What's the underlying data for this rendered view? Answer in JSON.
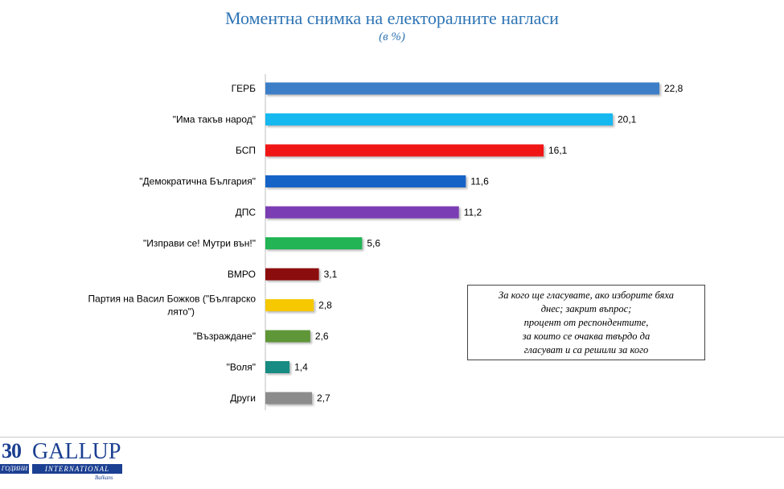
{
  "chart_data": {
    "type": "bar",
    "orientation": "horizontal",
    "title": "Моментна снимка на електоралните нагласи",
    "subtitle": "(в %)",
    "categories": [
      "ГЕРБ",
      "\"Има такъв народ\"",
      "БСП",
      "\"Демократична България\"",
      "ДПС",
      "\"Изправи се! Мутри вън!\"",
      "ВМРО",
      "Партия на Васил Божков (\"Българско лято\")",
      "\"Възраждане\"",
      "\"Воля\"",
      "Други"
    ],
    "values": [
      22.8,
      20.1,
      16.1,
      11.6,
      11.2,
      5.6,
      3.1,
      2.8,
      2.6,
      1.4,
      2.7
    ],
    "value_labels": [
      "22,8",
      "20,1",
      "16,1",
      "11,6",
      "11,2",
      "5,6",
      "3,1",
      "2,8",
      "2,6",
      "1,4",
      "2,7"
    ],
    "colors": [
      "#3d7ec8",
      "#19b8f0",
      "#f01414",
      "#1464c8",
      "#7a3cb4",
      "#22b455",
      "#8c1010",
      "#f5c800",
      "#5f9637",
      "#148c82",
      "#8c8c8c"
    ],
    "xlim": [
      0,
      23
    ],
    "grid": false,
    "legend": "none"
  },
  "note": {
    "lines": [
      "За кого ще гласувате, ако изборите бяха",
      "днес; закрит въпрос;",
      "процент от респондентите,",
      "за които се очаква твърдо да",
      "гласуват и са решили за кого"
    ]
  },
  "logo": {
    "years": "30",
    "years_caption": "ГОДИНИ",
    "brand": "GALLUP",
    "brand_sub": "INTERNATIONAL",
    "region": "Balkans"
  }
}
